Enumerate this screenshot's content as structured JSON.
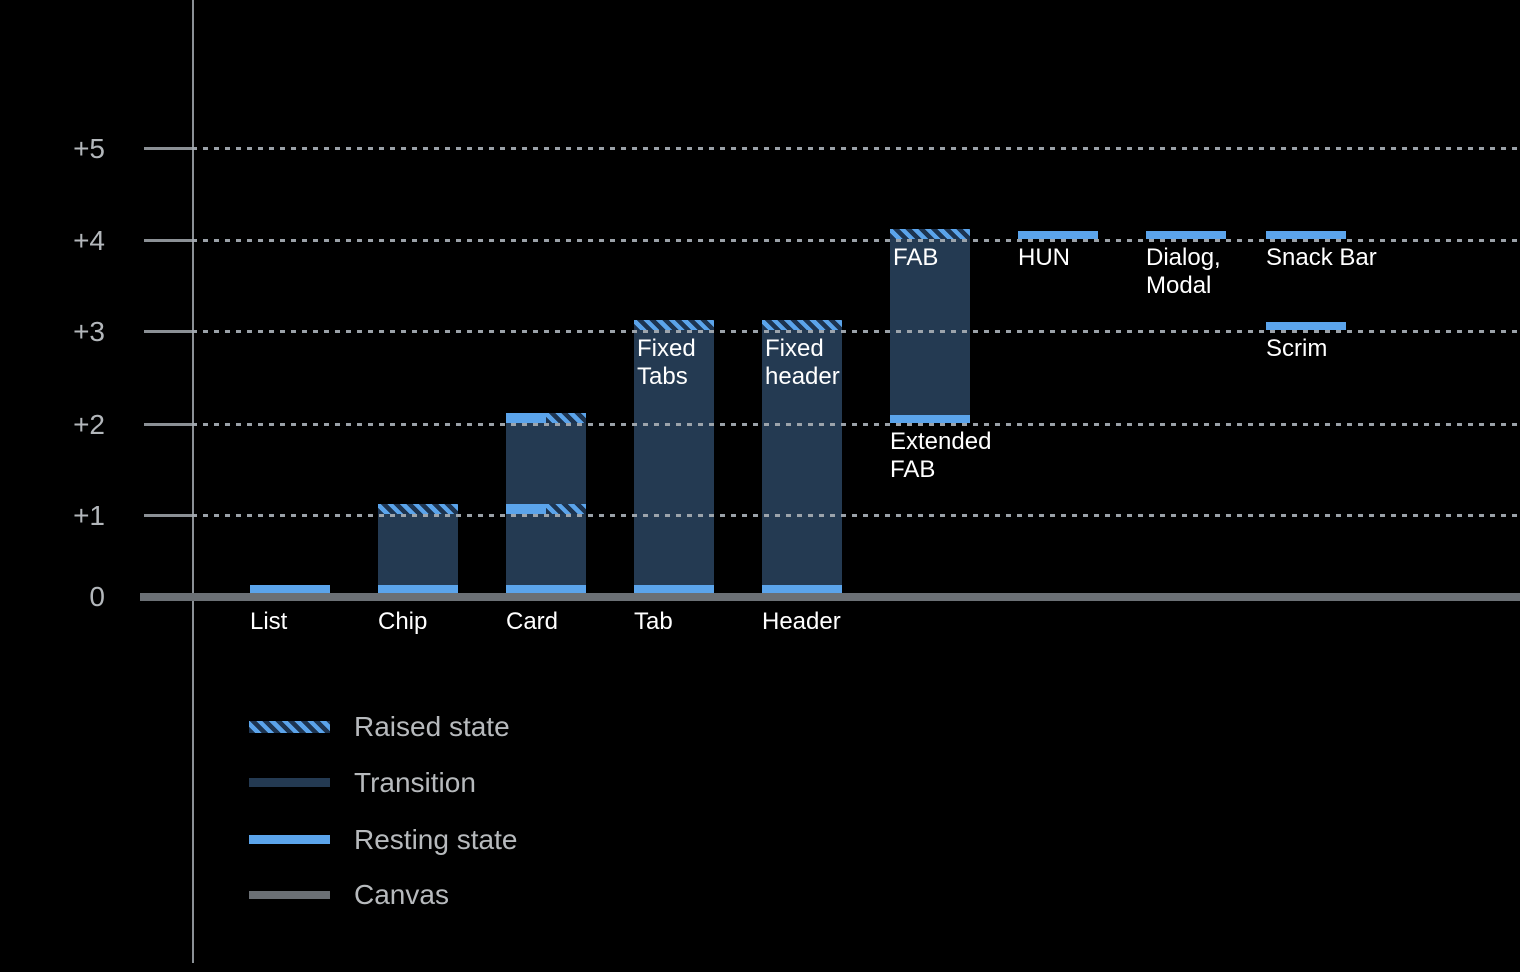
{
  "chart_data": {
    "type": "bar",
    "title": "",
    "ylabel": "",
    "ylim": [
      0,
      5
    ],
    "grid": "dotted-horizontal",
    "legend_position": "bottom-left",
    "yticks": [
      {
        "label": "+5",
        "level": 5
      },
      {
        "label": "+4",
        "level": 4
      },
      {
        "label": "+3",
        "level": 3
      },
      {
        "label": "+2",
        "level": 2
      },
      {
        "label": "+1",
        "level": 1
      },
      {
        "label": "0",
        "level": 0
      }
    ],
    "legend": [
      {
        "label": "Raised state",
        "style": "raised"
      },
      {
        "label": "Transition",
        "style": "transition"
      },
      {
        "label": "Resting state",
        "style": "resting"
      },
      {
        "label": "Canvas",
        "style": "canvas"
      }
    ],
    "components": [
      {
        "name": "List",
        "label_position": "baseline",
        "resting_elevation": 0,
        "raised_elevation": null,
        "segments": [
          {
            "type": "resting",
            "at": 0
          }
        ]
      },
      {
        "name": "Chip",
        "label_position": "baseline",
        "resting_elevation": 0,
        "raised_elevation": 1,
        "segments": [
          {
            "type": "resting",
            "at": 0
          },
          {
            "type": "transition",
            "from": 0,
            "to": 1
          },
          {
            "type": "raised",
            "at": 1
          }
        ]
      },
      {
        "name": "Card",
        "label_position": "baseline",
        "resting_elevation": [
          0,
          1
        ],
        "raised_elevation": [
          1,
          2
        ],
        "segments": [
          {
            "type": "resting",
            "at": 0
          },
          {
            "type": "transition",
            "from": 0,
            "to": 1
          },
          {
            "type": "split",
            "at": 1
          },
          {
            "type": "transition",
            "from": 1,
            "to": 2
          },
          {
            "type": "split",
            "at": 2
          }
        ]
      },
      {
        "name": "Tab",
        "label_position": "baseline",
        "bar_label": "Fixed\nTabs",
        "resting_elevation": 0,
        "raised_elevation": 3,
        "segments": [
          {
            "type": "resting",
            "at": 0
          },
          {
            "type": "transition",
            "from": 0,
            "to": 3
          },
          {
            "type": "raised",
            "at": 3
          }
        ]
      },
      {
        "name": "Header",
        "label_position": "baseline",
        "bar_label": "Fixed\nheader",
        "resting_elevation": 0,
        "raised_elevation": 3,
        "segments": [
          {
            "type": "resting",
            "at": 0
          },
          {
            "type": "transition",
            "from": 0,
            "to": 3
          },
          {
            "type": "raised",
            "at": 3
          }
        ]
      },
      {
        "name": "Extended\nFAB",
        "label_position": "below",
        "bar_label": "FAB",
        "resting_elevation": 2,
        "raised_elevation": 4,
        "segments": [
          {
            "type": "resting",
            "at": 2
          },
          {
            "type": "transition",
            "from": 2,
            "to": 4
          },
          {
            "type": "raised",
            "at": 4
          }
        ]
      },
      {
        "name": "HUN",
        "label_position": "below",
        "resting_elevation": 4,
        "raised_elevation": null,
        "segments": [
          {
            "type": "resting",
            "at": 4
          }
        ]
      },
      {
        "name": "Dialog,\nModal",
        "label_position": "below",
        "resting_elevation": 4,
        "raised_elevation": null,
        "segments": [
          {
            "type": "resting",
            "at": 4
          }
        ]
      },
      {
        "name": "Snack Bar",
        "label_position": "below",
        "resting_elevation": 4,
        "raised_elevation": null,
        "segments": [
          {
            "type": "resting",
            "at": 4
          }
        ]
      },
      {
        "name": "Scrim",
        "label_position": "below",
        "resting_elevation": 3,
        "raised_elevation": null,
        "segments": [
          {
            "type": "resting",
            "at": 3
          }
        ]
      }
    ],
    "colors": {
      "resting": "#5ba4eb",
      "transition": "#243a52",
      "raised_stripe_dark": "#1d3450",
      "raised_stripe_light": "#5ba4eb",
      "canvas": "#6b7075",
      "grid": "#a3aab1",
      "axis": "#8b9095",
      "axis_text": "#b3b7bb",
      "label_text": "#ffffff",
      "background": "#000000"
    }
  }
}
